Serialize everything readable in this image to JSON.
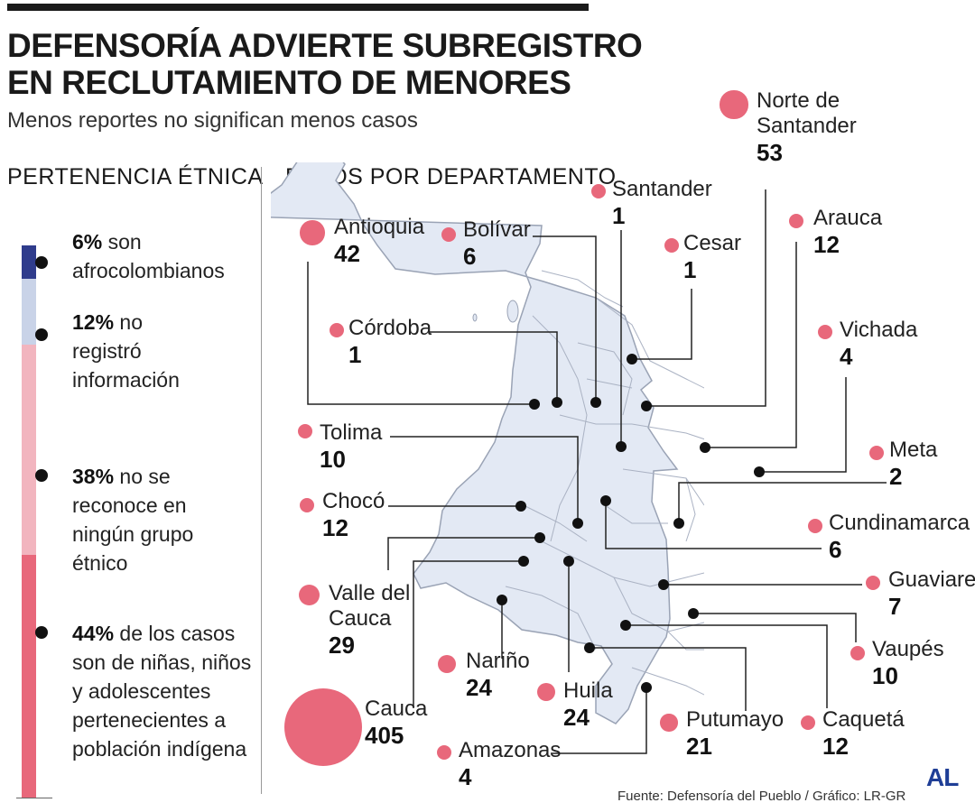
{
  "header": {
    "title_line1": "DEFENSORÍA ADVIERTE SUBREGISTRO",
    "title_line2": "EN RECLUTAMIENTO DE MENORES",
    "subtitle": "Menos reportes no significan menos casos"
  },
  "ethnic": {
    "heading": "PERTENENCIA ÉTNICA",
    "items": [
      {
        "pct": "6%",
        "text_lines": [
          " son",
          "afrocolombianos"
        ],
        "value": 6,
        "color": "#2f3c8c"
      },
      {
        "pct": "12%",
        "text_lines": [
          " no",
          "registró",
          "información"
        ],
        "value": 12,
        "color": "#c9d3e8"
      },
      {
        "pct": "38%",
        "text_lines": [
          " no se",
          "reconoce en",
          "ningún grupo",
          "étnico"
        ],
        "value": 38,
        "color": "#f2b5bf"
      },
      {
        "pct": "44%",
        "text_lines": [
          " de los casos",
          "son de niñas, niños",
          "y adolescentes",
          "pertenecientes a",
          "población indígena"
        ],
        "value": 44,
        "color": "#e8687b"
      }
    ]
  },
  "departments": {
    "heading": "DATOS POR DEPARTAMENTO",
    "items": [
      {
        "name": [
          "Antioquia"
        ],
        "value": "42",
        "cases": 42
      },
      {
        "name": [
          "Bolívar"
        ],
        "value": "6",
        "cases": 6
      },
      {
        "name": [
          "Santander"
        ],
        "value": "1",
        "cases": 1
      },
      {
        "name": [
          "Cesar"
        ],
        "value": "1",
        "cases": 1
      },
      {
        "name": [
          "Norte de",
          "Santander"
        ],
        "value": "53",
        "cases": 53
      },
      {
        "name": [
          "Arauca"
        ],
        "value": "12",
        "cases": 12
      },
      {
        "name": [
          "Córdoba"
        ],
        "value": "1",
        "cases": 1
      },
      {
        "name": [
          "Vichada"
        ],
        "value": "4",
        "cases": 4
      },
      {
        "name": [
          "Tolima"
        ],
        "value": "10",
        "cases": 10
      },
      {
        "name": [
          "Meta"
        ],
        "value": "2",
        "cases": 2
      },
      {
        "name": [
          "Chocó"
        ],
        "value": "12",
        "cases": 12
      },
      {
        "name": [
          "Cundinamarca"
        ],
        "value": "6",
        "cases": 6
      },
      {
        "name": [
          "Valle del",
          "Cauca"
        ],
        "value": "29",
        "cases": 29
      },
      {
        "name": [
          "Guaviare"
        ],
        "value": "7",
        "cases": 7
      },
      {
        "name": [
          "Vaupés"
        ],
        "value": "10",
        "cases": 10
      },
      {
        "name": [
          "Nariño"
        ],
        "value": "24",
        "cases": 24
      },
      {
        "name": [
          "Huila"
        ],
        "value": "24",
        "cases": 24
      },
      {
        "name": [
          "Cauca"
        ],
        "value": "405",
        "cases": 405
      },
      {
        "name": [
          "Putumayo"
        ],
        "value": "21",
        "cases": 21
      },
      {
        "name": [
          "Caquetá"
        ],
        "value": "12",
        "cases": 12
      },
      {
        "name": [
          "Amazonas"
        ],
        "value": "4",
        "cases": 4
      }
    ]
  },
  "colors": {
    "bubble": "#e8687b",
    "map_fill": "#e3e9f4",
    "map_stroke": "#9aa3b5",
    "leader": "#222222",
    "logo": "#1f3e96"
  },
  "footer": {
    "credit": "Fuente: Defensoría del Pueblo / Gráfico: LR-GR",
    "logo_text": "AL"
  }
}
